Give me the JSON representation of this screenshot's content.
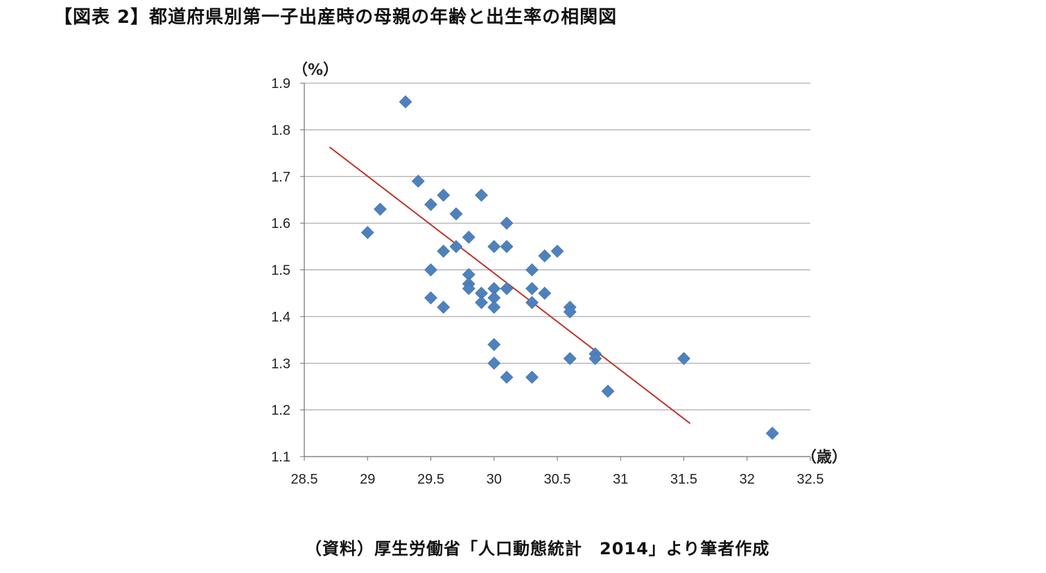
{
  "title": "【図表 2】都道府県別第一子出産時の母親の年齢と出生率の相関図",
  "source": "（資料）厚生労働省「人口動態統計　2014」より筆者作成",
  "colors": {
    "marker": "#4f81bd",
    "trendline": "#c0312b",
    "grid": "#9a9a9a",
    "axis": "#6e6e6e"
  },
  "chart_data": {
    "type": "scatter",
    "title": "",
    "xlabel": "（歳）",
    "ylabel": "（%）",
    "xlim": [
      28.5,
      32.5
    ],
    "ylim": [
      1.1,
      1.9
    ],
    "xticks": [
      "28.5",
      "29",
      "29.5",
      "30",
      "30.5",
      "31",
      "31.5",
      "32",
      "32.5"
    ],
    "yticks": [
      "1.1",
      "1.2",
      "1.3",
      "1.4",
      "1.5",
      "1.6",
      "1.7",
      "1.8",
      "1.9"
    ],
    "grid": true,
    "marker": "diamond",
    "series": [
      {
        "points": [
          [
            29.3,
            1.86
          ],
          [
            29.1,
            1.63
          ],
          [
            29.0,
            1.58
          ],
          [
            29.4,
            1.69
          ],
          [
            29.5,
            1.64
          ],
          [
            29.6,
            1.66
          ],
          [
            29.7,
            1.62
          ],
          [
            29.9,
            1.66
          ],
          [
            29.8,
            1.57
          ],
          [
            29.7,
            1.55
          ],
          [
            29.6,
            1.54
          ],
          [
            30.1,
            1.6
          ],
          [
            30.0,
            1.55
          ],
          [
            30.1,
            1.55
          ],
          [
            29.5,
            1.5
          ],
          [
            29.8,
            1.49
          ],
          [
            29.8,
            1.47
          ],
          [
            29.8,
            1.46
          ],
          [
            29.9,
            1.45
          ],
          [
            29.9,
            1.43
          ],
          [
            29.5,
            1.44
          ],
          [
            29.6,
            1.42
          ],
          [
            30.0,
            1.46
          ],
          [
            30.0,
            1.44
          ],
          [
            30.0,
            1.42
          ],
          [
            30.1,
            1.46
          ],
          [
            30.3,
            1.5
          ],
          [
            30.4,
            1.53
          ],
          [
            30.5,
            1.54
          ],
          [
            30.3,
            1.46
          ],
          [
            30.3,
            1.43
          ],
          [
            30.4,
            1.45
          ],
          [
            30.6,
            1.42
          ],
          [
            30.6,
            1.41
          ],
          [
            30.0,
            1.34
          ],
          [
            30.0,
            1.3
          ],
          [
            30.1,
            1.27
          ],
          [
            30.3,
            1.27
          ],
          [
            30.6,
            1.31
          ],
          [
            30.8,
            1.32
          ],
          [
            30.8,
            1.31
          ],
          [
            30.9,
            1.24
          ],
          [
            31.5,
            1.31
          ],
          [
            32.2,
            1.15
          ]
        ]
      }
    ],
    "trendline": {
      "x": [
        28.7,
        31.55
      ],
      "y": [
        1.763,
        1.171
      ]
    }
  }
}
